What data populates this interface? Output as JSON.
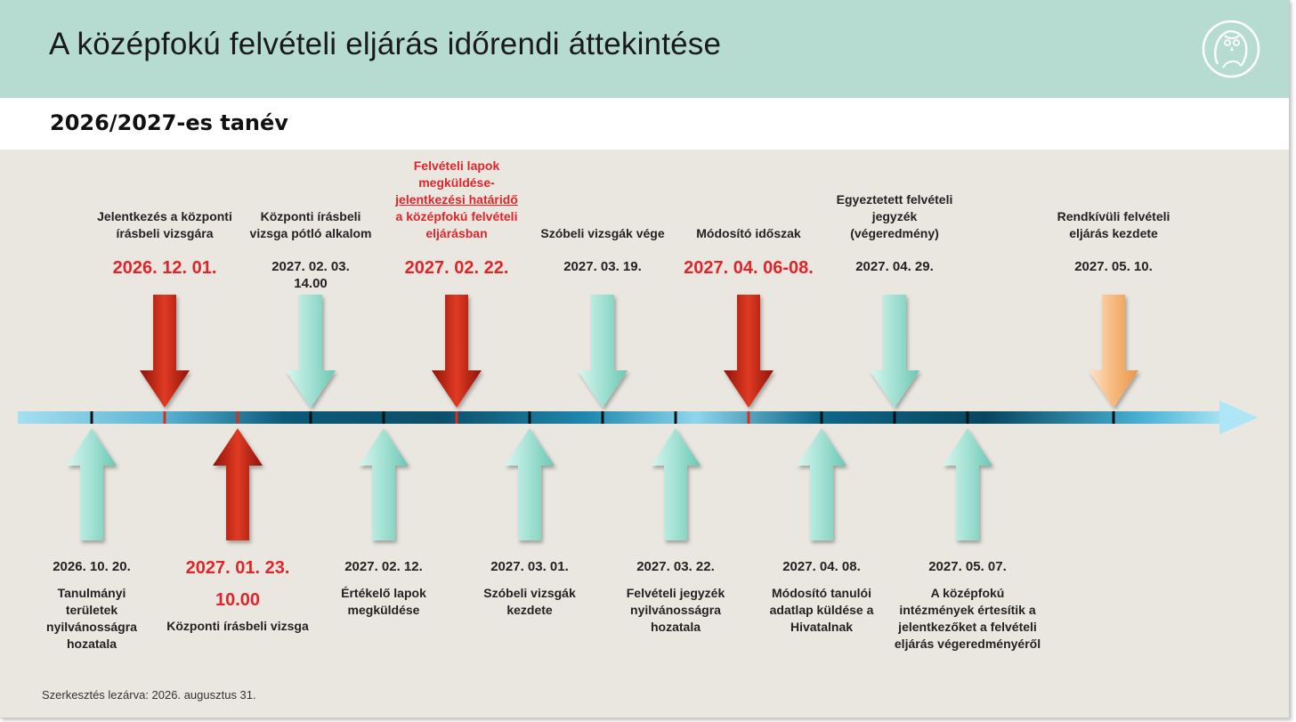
{
  "title": "A középfokú felvételi eljárás időrendi áttekintése",
  "subtitle": "2026/2027-es tanév",
  "footer": "Szerkesztés lezárva: 2026. augusztus 31.",
  "colors": {
    "header": "#b6dcd2",
    "red_arrow": "#d9301c",
    "teal_arrow": "#a5e3d6",
    "orange_arrow": "#f7bb84",
    "highlight_text": "#e0252a"
  },
  "top_events": [
    {
      "label_lines": [
        "Jelentkezés a központi",
        "írásbeli vizsgára"
      ],
      "date_lines": [
        "2026. 12. 01."
      ],
      "arrow": "red",
      "highlight": true
    },
    {
      "label_lines": [
        "Központi írásbeli",
        "vizsga pótló alkalom"
      ],
      "date_lines": [
        "2027. 02. 03.",
        "14.00"
      ],
      "arrow": "teal",
      "highlight": false
    },
    {
      "label_lines": [
        "Felvételi lapok",
        "megküldése-",
        "jelentkezési határidő",
        "a középfokú felvételi",
        "eljárásban"
      ],
      "underlined_lines": [
        2
      ],
      "date_lines": [
        "2027. 02. 22."
      ],
      "arrow": "red",
      "highlight": true
    },
    {
      "label_lines": [
        "Szóbeli vizsgák vége"
      ],
      "date_lines": [
        "2027. 03. 19."
      ],
      "arrow": "teal",
      "highlight": false
    },
    {
      "label_lines": [
        "Módosító időszak"
      ],
      "date_lines": [
        "2027. 04. 06-08."
      ],
      "arrow": "red",
      "highlight": true
    },
    {
      "label_lines": [
        "Egyeztetett felvételi",
        "jegyzék",
        "(végeredmény)"
      ],
      "date_lines": [
        "2027. 04. 29."
      ],
      "arrow": "teal",
      "highlight": false
    },
    {
      "label_lines": [
        "Rendkívüli felvételi",
        "eljárás kezdete"
      ],
      "date_lines": [
        "2027. 05. 10."
      ],
      "arrow": "orange",
      "highlight": false
    }
  ],
  "bottom_events": [
    {
      "date_lines": [
        "2026. 10. 20."
      ],
      "label_lines": [
        "Tanulmányi",
        "területek",
        "nyilvánosságra",
        "hozatala"
      ],
      "arrow": "teal",
      "highlight": false
    },
    {
      "date_lines": [
        "2027. 01. 23.",
        "10.00"
      ],
      "label_lines": [
        "Központi írásbeli vizsga"
      ],
      "arrow": "red",
      "highlight": true
    },
    {
      "date_lines": [
        "2027. 02. 12."
      ],
      "label_lines": [
        "Értékelő lapok",
        "megküldése"
      ],
      "arrow": "teal",
      "highlight": false
    },
    {
      "date_lines": [
        "2027. 03. 01."
      ],
      "label_lines": [
        "Szóbeli vizsgák",
        "kezdete"
      ],
      "arrow": "teal",
      "highlight": false
    },
    {
      "date_lines": [
        "2027. 03. 22."
      ],
      "label_lines": [
        "Felvételi jegyzék",
        "nyilvánosságra",
        "hozatala"
      ],
      "arrow": "teal",
      "highlight": false
    },
    {
      "date_lines": [
        "2027. 04. 08."
      ],
      "label_lines": [
        "Módosító tanulói",
        "adatlap küldése a",
        "Hivatalnak"
      ],
      "arrow": "teal",
      "highlight": false
    },
    {
      "date_lines": [
        "2027. 05. 07."
      ],
      "label_lines": [
        "A középfokú",
        "intézmények értesítik a",
        "jelentkezőket a felvételi",
        "eljárás végeredményéről"
      ],
      "arrow": "teal",
      "highlight": false
    }
  ]
}
